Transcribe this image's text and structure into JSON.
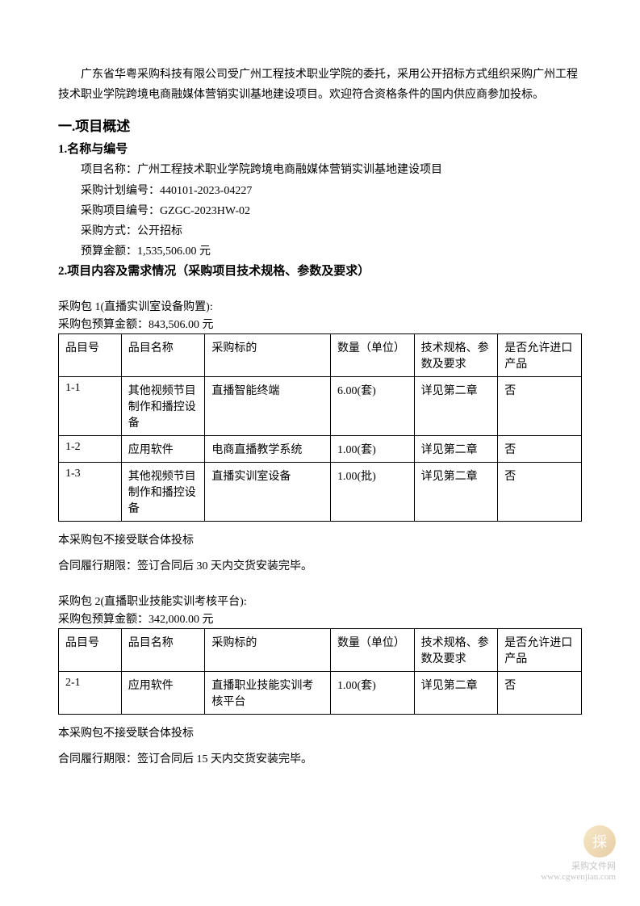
{
  "intro": "广东省华粤采购科技有限公司受广州工程技术职业学院的委托，采用公开招标方式组织采购广州工程技术职业学院跨境电商融媒体营销实训基地建设项目。欢迎符合资格条件的国内供应商参加投标。",
  "section1_title": "一.项目概述",
  "subsection1_title": "1.名称与编号",
  "project_name_label": "项目名称：",
  "project_name": "广州工程技术职业学院跨境电商融媒体营销实训基地建设项目",
  "plan_no_label": "采购计划编号：",
  "plan_no": "440101-2023-04227",
  "proj_no_label": "采购项目编号：",
  "proj_no": "GZGC-2023HW-02",
  "method_label": "采购方式：",
  "method": "公开招标",
  "budget_label": "预算金额：",
  "budget": "1,535,506.00 元",
  "subsection2_title": "2.项目内容及需求情况（采购项目技术规格、参数及要求）",
  "package1_title": "采购包 1(直播实训室设备购置):",
  "package1_budget_label": "采购包预算金额：",
  "package1_budget": "843,506.00 元",
  "table_headers": {
    "id": "品目号",
    "name": "品目名称",
    "target": "采购标的",
    "qty": "数量（单位）",
    "spec": "技术规格、参数及要求",
    "import": "是否允许进口产品"
  },
  "package1_rows": [
    {
      "id": "1-1",
      "name": "其他视频节目制作和播控设备",
      "target": "直播智能终端",
      "qty": "6.00(套)",
      "spec": "详见第二章",
      "import": "否"
    },
    {
      "id": "1-2",
      "name": "应用软件",
      "target": "电商直播教学系统",
      "qty": "1.00(套)",
      "spec": "详见第二章",
      "import": "否"
    },
    {
      "id": "1-3",
      "name": "其他视频节目制作和播控设备",
      "target": "直播实训室设备",
      "qty": "1.00(批)",
      "spec": "详见第二章",
      "import": "否"
    }
  ],
  "package1_note1": "本采购包不接受联合体投标",
  "package1_note2": "合同履行期限：签订合同后 30 天内交货安装完毕。",
  "package2_title": "采购包 2(直播职业技能实训考核平台):",
  "package2_budget_label": "采购包预算金额：",
  "package2_budget": "342,000.00 元",
  "package2_rows": [
    {
      "id": "2-1",
      "name": "应用软件",
      "target": "直播职业技能实训考核平台",
      "qty": "1.00(套)",
      "spec": "详见第二章",
      "import": "否"
    }
  ],
  "package2_note1": "本采购包不接受联合体投标",
  "package2_note2": "合同履行期限：签订合同后 15 天内交货安装完毕。",
  "watermark_text": "采购文件网",
  "watermark_url": "www.cgwenjian.com",
  "watermark_icon": "採"
}
